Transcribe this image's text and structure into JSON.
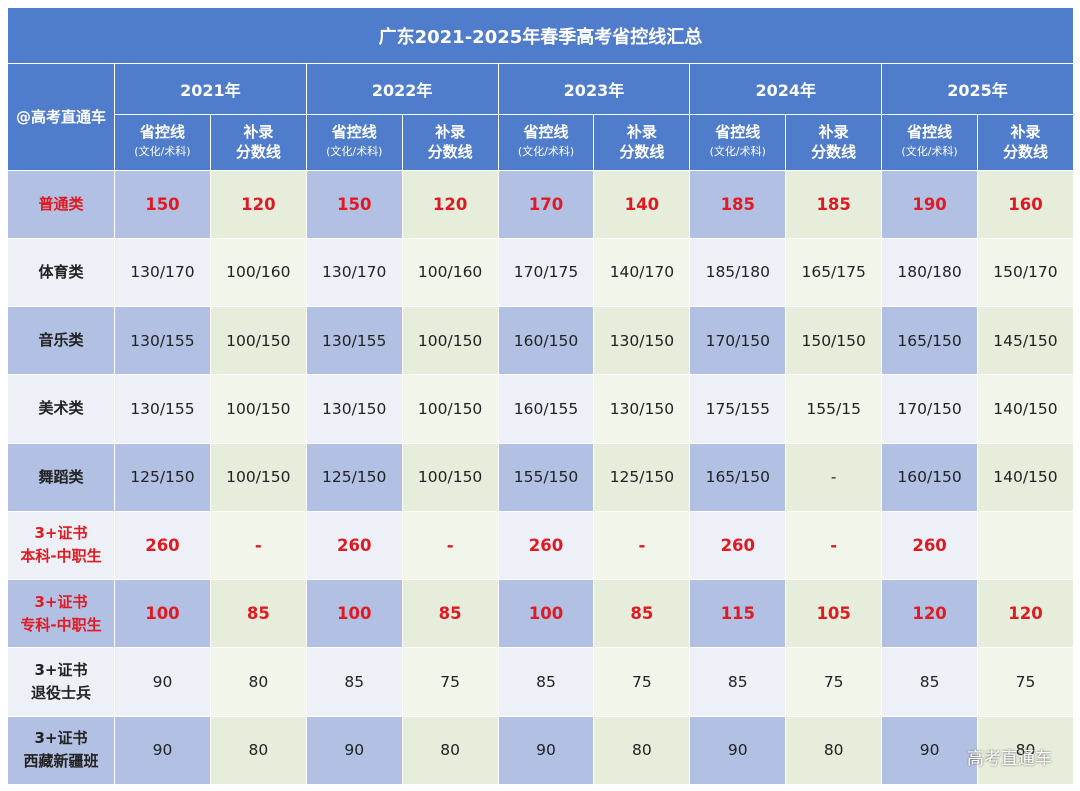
{
  "title": "广东2021-2025年春季高考省控线汇总",
  "corner_label": "@高考直通车",
  "years": [
    "2021年",
    "2022年",
    "2023年",
    "2024年",
    "2025年"
  ],
  "sub_headers": {
    "prov_main": "省控线",
    "prov_sub": "(文化/术科)",
    "supp_line1": "补录",
    "supp_line2": "分数线"
  },
  "rows": [
    {
      "label": [
        "普通类"
      ],
      "red_label": true,
      "red_values": true,
      "values": [
        "150",
        "120",
        "150",
        "120",
        "170",
        "140",
        "185",
        "185",
        "190",
        "160"
      ]
    },
    {
      "label": [
        "体育类"
      ],
      "red_label": false,
      "red_values": false,
      "values": [
        "130/170",
        "100/160",
        "130/170",
        "100/160",
        "170/175",
        "140/170",
        "185/180",
        "165/175",
        "180/180",
        "150/170"
      ]
    },
    {
      "label": [
        "音乐类"
      ],
      "red_label": false,
      "red_values": false,
      "values": [
        "130/155",
        "100/150",
        "130/155",
        "100/150",
        "160/150",
        "130/150",
        "170/150",
        "150/150",
        "165/150",
        "145/150"
      ]
    },
    {
      "label": [
        "美术类"
      ],
      "red_label": false,
      "red_values": false,
      "values": [
        "130/155",
        "100/150",
        "130/150",
        "100/150",
        "160/155",
        "130/150",
        "175/155",
        "155/15",
        "170/150",
        "140/150"
      ]
    },
    {
      "label": [
        "舞蹈类"
      ],
      "red_label": false,
      "red_values": false,
      "values": [
        "125/150",
        "100/150",
        "125/150",
        "100/150",
        "155/150",
        "125/150",
        "165/150",
        "-",
        "160/150",
        "140/150"
      ]
    },
    {
      "label": [
        "3+证书",
        "本科-中职生"
      ],
      "red_label": true,
      "red_values": true,
      "values": [
        "260",
        "-",
        "260",
        "-",
        "260",
        "-",
        "260",
        "-",
        "260",
        ""
      ]
    },
    {
      "label": [
        "3+证书",
        "专科-中职生"
      ],
      "red_label": true,
      "red_values": true,
      "values": [
        "100",
        "85",
        "100",
        "85",
        "100",
        "85",
        "115",
        "105",
        "120",
        "120"
      ]
    },
    {
      "label": [
        "3+证书",
        "退役士兵"
      ],
      "red_label": false,
      "red_values": false,
      "values": [
        "90",
        "80",
        "85",
        "75",
        "85",
        "75",
        "85",
        "75",
        "85",
        "75"
      ]
    },
    {
      "label": [
        "3+证书",
        "西藏新疆班"
      ],
      "red_label": false,
      "red_values": false,
      "values": [
        "90",
        "80",
        "90",
        "80",
        "90",
        "80",
        "90",
        "80",
        "90",
        "80"
      ]
    }
  ],
  "watermark": "高考直通车",
  "colors": {
    "header_bg": "#4f7ccb",
    "red_text": "#e01a22",
    "dark_col_a": "#b2c1e3",
    "dark_col_b": "#e6eddb",
    "light_col_a": "#eef0f8",
    "light_col_b": "#f1f5ea"
  }
}
